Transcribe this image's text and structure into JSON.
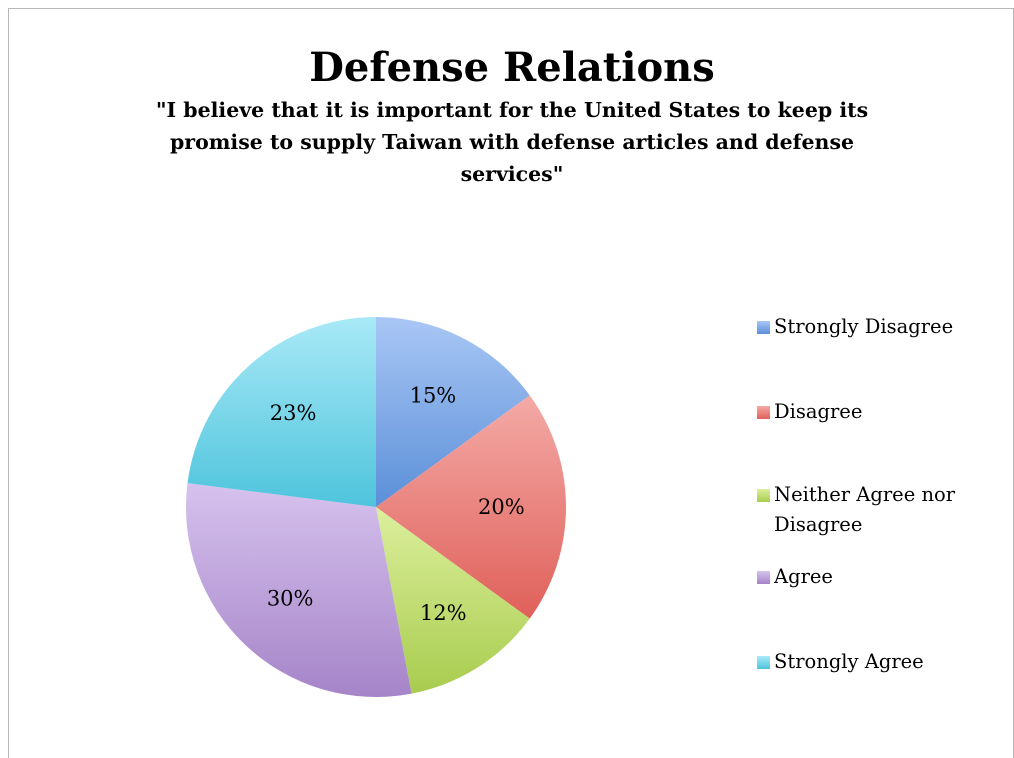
{
  "chart_data": {
    "type": "pie",
    "title": "Defense Relations",
    "subtitle": "\"I believe that it is important for the United States to keep its promise to supply Taiwan with defense articles and defense services\"",
    "categories": [
      "Strongly Disagree",
      "Disagree",
      "Neither Agree nor Disagree",
      "Agree",
      "Strongly Agree"
    ],
    "values": [
      15,
      20,
      12,
      30,
      23
    ],
    "labels": [
      "15%",
      "20%",
      "12%",
      "30%",
      "23%"
    ],
    "colors": [
      "#5b8fd8",
      "#e0605a",
      "#a8cc4e",
      "#a584c8",
      "#4ec4dc"
    ],
    "colors_light": [
      "#a9c7f5",
      "#f4aaa6",
      "#dcef9d",
      "#d6c2ee",
      "#a9e9f7"
    ],
    "legend_position": "right"
  }
}
